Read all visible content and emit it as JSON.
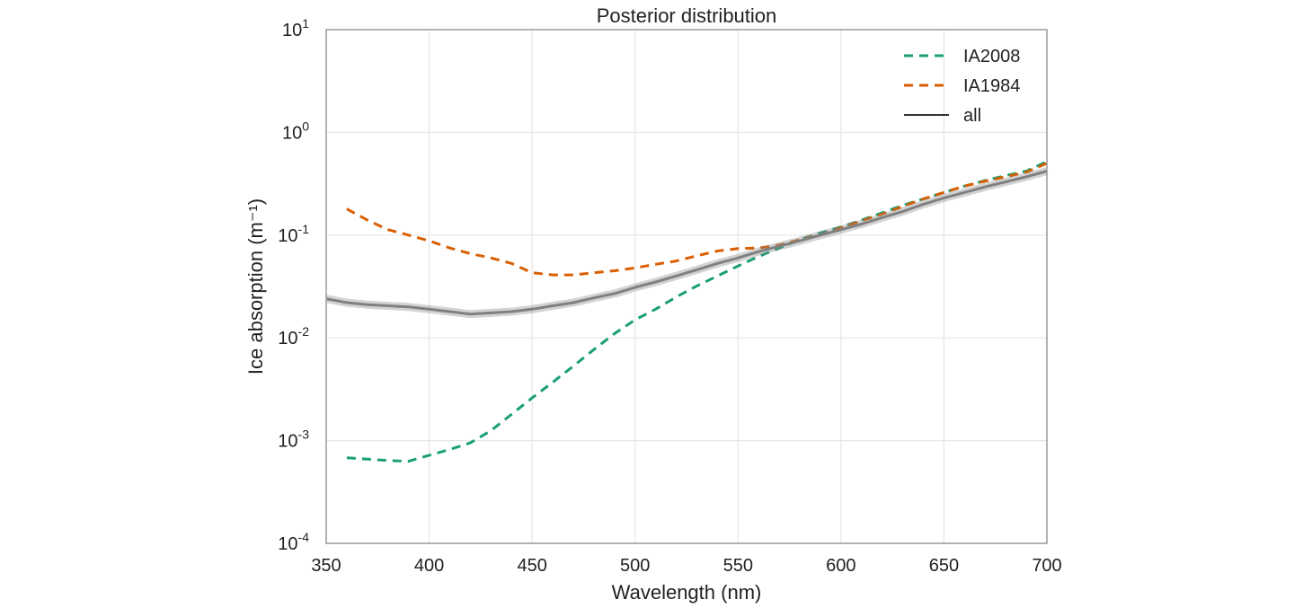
{
  "chart_data": {
    "type": "line",
    "title": "Posterior distribution",
    "xlabel": "Wavelength (nm)",
    "ylabel": "Ice absorption (m⁻¹)",
    "xlim": [
      350,
      700
    ],
    "ylim": [
      0.0001,
      10
    ],
    "yscale": "log",
    "grid": true,
    "legend_position": "top-right",
    "xticks": [
      350,
      400,
      450,
      500,
      550,
      600,
      650,
      700
    ],
    "xtick_labels": [
      "350",
      "400",
      "450",
      "500",
      "550",
      "600",
      "650",
      "700"
    ],
    "yticks": [
      {
        "value": 10,
        "base": "10",
        "exp": "1"
      },
      {
        "value": 1,
        "base": "10",
        "exp": "0"
      },
      {
        "value": 0.1,
        "base": "10",
        "exp": "-1"
      },
      {
        "value": 0.01,
        "base": "10",
        "exp": "-2"
      },
      {
        "value": 0.001,
        "base": "10",
        "exp": "-3"
      },
      {
        "value": 0.0001,
        "base": "10",
        "exp": "-4"
      }
    ],
    "series": [
      {
        "name": "IA2008",
        "color": "#1a9e77",
        "style": "dashed",
        "x": [
          360,
          370,
          380,
          390,
          400,
          410,
          420,
          430,
          440,
          450,
          460,
          470,
          480,
          490,
          500,
          510,
          520,
          530,
          540,
          550,
          560,
          570,
          580,
          590,
          600,
          610,
          620,
          630,
          640,
          650,
          660,
          670,
          680,
          690,
          700
        ],
        "y": [
          0.00068,
          0.00066,
          0.00064,
          0.00063,
          0.00072,
          0.00082,
          0.00095,
          0.00125,
          0.0018,
          0.0026,
          0.0037,
          0.0053,
          0.0077,
          0.011,
          0.015,
          0.019,
          0.025,
          0.032,
          0.04,
          0.05,
          0.062,
          0.075,
          0.09,
          0.105,
          0.12,
          0.14,
          0.165,
          0.195,
          0.225,
          0.26,
          0.3,
          0.34,
          0.38,
          0.42,
          0.52
        ]
      },
      {
        "name": "IA1984",
        "color": "#d95f02",
        "style": "dashed",
        "x": [
          360,
          370,
          380,
          390,
          400,
          410,
          420,
          430,
          440,
          450,
          460,
          470,
          480,
          490,
          500,
          510,
          520,
          530,
          540,
          550,
          560,
          570,
          580,
          590,
          600,
          610,
          620,
          630,
          640,
          650,
          660,
          670,
          680,
          690,
          700
        ],
        "y": [
          0.18,
          0.14,
          0.113,
          0.1,
          0.088,
          0.075,
          0.066,
          0.06,
          0.053,
          0.043,
          0.041,
          0.041,
          0.043,
          0.045,
          0.048,
          0.052,
          0.056,
          0.063,
          0.07,
          0.074,
          0.075,
          0.08,
          0.09,
          0.1,
          0.118,
          0.138,
          0.16,
          0.19,
          0.225,
          0.26,
          0.3,
          0.335,
          0.37,
          0.41,
          0.5
        ]
      },
      {
        "name": "all",
        "color": "#808080",
        "style": "solid",
        "x": [
          350,
          360,
          370,
          380,
          390,
          400,
          410,
          420,
          430,
          440,
          450,
          460,
          470,
          480,
          490,
          500,
          510,
          520,
          530,
          540,
          550,
          560,
          570,
          580,
          590,
          600,
          610,
          620,
          630,
          640,
          650,
          660,
          670,
          680,
          690,
          700
        ],
        "y": [
          0.024,
          0.022,
          0.021,
          0.0205,
          0.02,
          0.019,
          0.018,
          0.017,
          0.0175,
          0.018,
          0.019,
          0.0205,
          0.022,
          0.0245,
          0.027,
          0.031,
          0.035,
          0.04,
          0.046,
          0.053,
          0.06,
          0.069,
          0.078,
          0.088,
          0.1,
          0.113,
          0.128,
          0.148,
          0.17,
          0.2,
          0.23,
          0.26,
          0.295,
          0.33,
          0.37,
          0.42
        ]
      }
    ]
  }
}
